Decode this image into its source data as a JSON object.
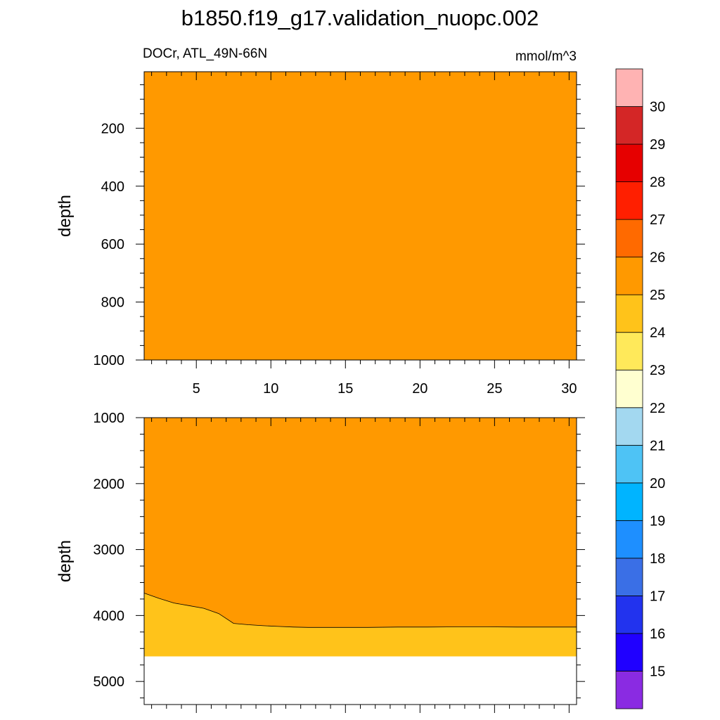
{
  "figure": {
    "title": "b1850.f19_g17.validation_nuopc.002",
    "variable_region": "DOCr, ATL_49N-66N",
    "units": "mmol/m^3"
  },
  "chart_data": [
    {
      "type": "contour",
      "panel": "upper",
      "xlabel": "",
      "ylabel": "depth",
      "xlim": [
        1.5,
        30.5
      ],
      "ylim": [
        1000,
        5
      ],
      "x_ticks": [
        5,
        10,
        15,
        20,
        25,
        30
      ],
      "y_ticks": [
        200,
        400,
        600,
        800,
        1000
      ],
      "fill_level": [
        25,
        26
      ],
      "fill_color": "#ff9900"
    },
    {
      "type": "contour",
      "panel": "lower",
      "xlabel": "",
      "ylabel": "depth",
      "xlim": [
        1.5,
        30.5
      ],
      "ylim": [
        5350,
        1000
      ],
      "x_ticks": [
        5,
        10,
        15,
        20,
        25,
        30
      ],
      "y_ticks": [
        1000,
        2000,
        3000,
        4000,
        5000
      ],
      "bottom_depth": 4620,
      "upper_region": {
        "range": [
          25,
          26
        ],
        "color": "#ff9900"
      },
      "lower_region": {
        "range": [
          24,
          25
        ],
        "color": "#ffc31a"
      },
      "contour_25": {
        "x": [
          1.5,
          2.5,
          3.5,
          4.5,
          5.5,
          6.5,
          7.5,
          8.5,
          9.5,
          10.5,
          11.5,
          12.5,
          14.5,
          16.5,
          18.5,
          20.5,
          22.5,
          24.5,
          26.5,
          28.5,
          30.5
        ],
        "depth": [
          3660,
          3740,
          3810,
          3850,
          3890,
          3970,
          4120,
          4140,
          4155,
          4165,
          4175,
          4180,
          4180,
          4180,
          4175,
          4175,
          4172,
          4172,
          4175,
          4175,
          4175
        ]
      }
    }
  ],
  "colorbar": {
    "labels": [
      "15",
      "16",
      "17",
      "18",
      "19",
      "20",
      "21",
      "22",
      "23",
      "24",
      "25",
      "26",
      "27",
      "28",
      "29",
      "30"
    ],
    "colors": [
      "#8a2be2",
      "#2000ff",
      "#2233ee",
      "#3a6fe6",
      "#1e8fff",
      "#00b4ff",
      "#4ec3f5",
      "#a3d8f0",
      "#ffffd0",
      "#ffe95a",
      "#ffc31a",
      "#ff9900",
      "#ff6a00",
      "#ff1f00",
      "#e60000",
      "#d42626",
      "#ffb3b3"
    ]
  }
}
